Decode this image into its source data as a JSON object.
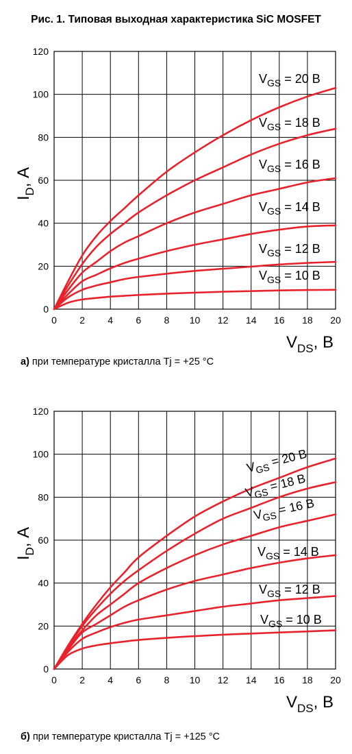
{
  "figure": {
    "title": "Рис. 1. Типовая выходная характеристика SiC MOSFET"
  },
  "captions": [
    {
      "label": "а)",
      "text": " при температуре кристалла  Tj = +25 °C"
    },
    {
      "label": "б)",
      "text": " при температуре кристалла  Tj = +125 °C"
    }
  ],
  "colors": {
    "curve": "#e8222b",
    "grid": "#000000"
  },
  "chart_data": [
    {
      "type": "line",
      "xlabel_main": "V",
      "xlabel_sub": "DS",
      "xlabel_tail": ", В",
      "ylabel_main": "I",
      "ylabel_sub": "D",
      "ylabel_tail": ", А",
      "xlim": [
        0,
        20
      ],
      "ylim": [
        0,
        120
      ],
      "xticks": [
        0,
        2,
        4,
        6,
        8,
        10,
        12,
        14,
        16,
        18,
        20
      ],
      "yticks": [
        0,
        20,
        40,
        60,
        80,
        100,
        120
      ],
      "grid": true,
      "series": [
        {
          "name": "V_GS = 20 В",
          "label_main": "V",
          "label_sub": "GS",
          "label_tail": " = 20 В",
          "x": [
            0,
            1,
            2,
            3,
            4,
            5,
            6,
            8,
            10,
            12,
            14,
            16,
            18,
            20
          ],
          "y": [
            0,
            13,
            25,
            34,
            41,
            47,
            53,
            64,
            73,
            81,
            88,
            94,
            99,
            103
          ]
        },
        {
          "name": "V_GS = 18 В",
          "label_main": "V",
          "label_sub": "GS",
          "label_tail": " = 18 В",
          "x": [
            0,
            1,
            2,
            3,
            4,
            5,
            6,
            8,
            10,
            12,
            14,
            16,
            18,
            20
          ],
          "y": [
            0,
            11,
            21,
            29,
            35,
            40,
            45,
            53,
            60,
            66,
            72,
            77,
            81,
            84
          ]
        },
        {
          "name": "V_GS = 16 В",
          "label_main": "V",
          "label_sub": "GS",
          "label_tail": " = 16 В",
          "x": [
            0,
            1,
            2,
            3,
            4,
            5,
            6,
            8,
            10,
            12,
            14,
            16,
            18,
            20
          ],
          "y": [
            0,
            9,
            17,
            22,
            27,
            31,
            34,
            40,
            45,
            49,
            53,
            56,
            59,
            61
          ]
        },
        {
          "name": "V_GS = 14 В",
          "label_main": "V",
          "label_sub": "GS",
          "label_tail": " = 14 В",
          "x": [
            0,
            1,
            2,
            3,
            4,
            5,
            6,
            8,
            10,
            12,
            14,
            16,
            18,
            20
          ],
          "y": [
            0,
            7,
            13,
            16,
            19,
            21.5,
            23.5,
            27,
            30,
            32.5,
            35,
            37,
            38.5,
            39
          ]
        },
        {
          "name": "V_GS = 12 В",
          "label_main": "V",
          "label_sub": "GS",
          "label_tail": " = 12 В",
          "x": [
            0,
            1,
            2,
            3,
            4,
            5,
            6,
            8,
            10,
            12,
            14,
            16,
            18,
            20
          ],
          "y": [
            0,
            5.5,
            9,
            11,
            12.5,
            14,
            15,
            16.5,
            17.8,
            18.8,
            19.8,
            20.8,
            21.5,
            22
          ]
        },
        {
          "name": "V_GS = 10 В",
          "label_main": "V",
          "label_sub": "GS",
          "label_tail": " = 10 В",
          "x": [
            0,
            1,
            2,
            3,
            4,
            5,
            6,
            8,
            10,
            12,
            14,
            16,
            18,
            20
          ],
          "y": [
            0,
            3,
            4.5,
            5.2,
            5.8,
            6.2,
            6.6,
            7.2,
            7.7,
            8.1,
            8.4,
            8.7,
            8.9,
            9
          ]
        }
      ]
    },
    {
      "type": "line",
      "xlabel_main": "V",
      "xlabel_sub": "DS",
      "xlabel_tail": ", В",
      "ylabel_main": "I",
      "ylabel_sub": "D",
      "ylabel_tail": ", А",
      "xlim": [
        0,
        20
      ],
      "ylim": [
        0,
        120
      ],
      "xticks": [
        0,
        2,
        4,
        6,
        8,
        10,
        12,
        14,
        16,
        18,
        20
      ],
      "yticks": [
        0,
        20,
        40,
        60,
        80,
        100,
        120
      ],
      "grid": true,
      "series": [
        {
          "name": "V_GS = 20 В",
          "label_main": "V",
          "label_sub": "GS",
          "label_tail": " = 20 В",
          "x": [
            0,
            1,
            2,
            3,
            4,
            5,
            6,
            8,
            10,
            12,
            14,
            16,
            18,
            20
          ],
          "y": [
            0,
            11,
            21,
            30,
            38,
            45,
            52,
            62,
            71,
            78,
            84,
            89,
            94,
            98
          ]
        },
        {
          "name": "V_GS = 18 В",
          "label_main": "V",
          "label_sub": "GS",
          "label_tail": " = 18 В",
          "x": [
            0,
            1,
            2,
            3,
            4,
            5,
            6,
            8,
            10,
            12,
            14,
            16,
            18,
            20
          ],
          "y": [
            0,
            10.5,
            20,
            28,
            35,
            41,
            46,
            55,
            63,
            70,
            75,
            80,
            84,
            87
          ]
        },
        {
          "name": "V_GS = 16 В",
          "label_main": "V",
          "label_sub": "GS",
          "label_tail": " = 16 В",
          "x": [
            0,
            1,
            2,
            3,
            4,
            5,
            6,
            8,
            10,
            12,
            14,
            16,
            18,
            20
          ],
          "y": [
            0,
            10,
            18,
            25,
            30,
            35,
            40,
            47,
            53,
            58,
            62,
            66,
            69,
            72
          ]
        },
        {
          "name": "V_GS = 14 В",
          "label_main": "V",
          "label_sub": "GS",
          "label_tail": " = 14 В",
          "x": [
            0,
            1,
            2,
            3,
            4,
            5,
            6,
            8,
            10,
            12,
            14,
            16,
            18,
            20
          ],
          "y": [
            0,
            9,
            17,
            21,
            25,
            29,
            32,
            37,
            41,
            44,
            47,
            49.5,
            51.5,
            53
          ]
        },
        {
          "name": "V_GS = 12 В",
          "label_main": "V",
          "label_sub": "GS",
          "label_tail": " = 12 В",
          "x": [
            0,
            1,
            2,
            3,
            4,
            5,
            6,
            8,
            10,
            12,
            14,
            16,
            18,
            20
          ],
          "y": [
            0,
            8,
            14,
            17,
            19.5,
            21.5,
            23,
            25,
            27,
            29,
            30.5,
            32,
            33,
            34
          ]
        },
        {
          "name": "V_GS = 10 В",
          "label_main": "V",
          "label_sub": "GS",
          "label_tail": " = 10 В",
          "x": [
            0,
            1,
            2,
            3,
            4,
            5,
            6,
            8,
            10,
            12,
            14,
            16,
            18,
            20
          ],
          "y": [
            0,
            6.5,
            9.5,
            11,
            12,
            12.8,
            13.5,
            14.5,
            15.3,
            16,
            16.5,
            17,
            17.5,
            18
          ]
        }
      ]
    }
  ]
}
